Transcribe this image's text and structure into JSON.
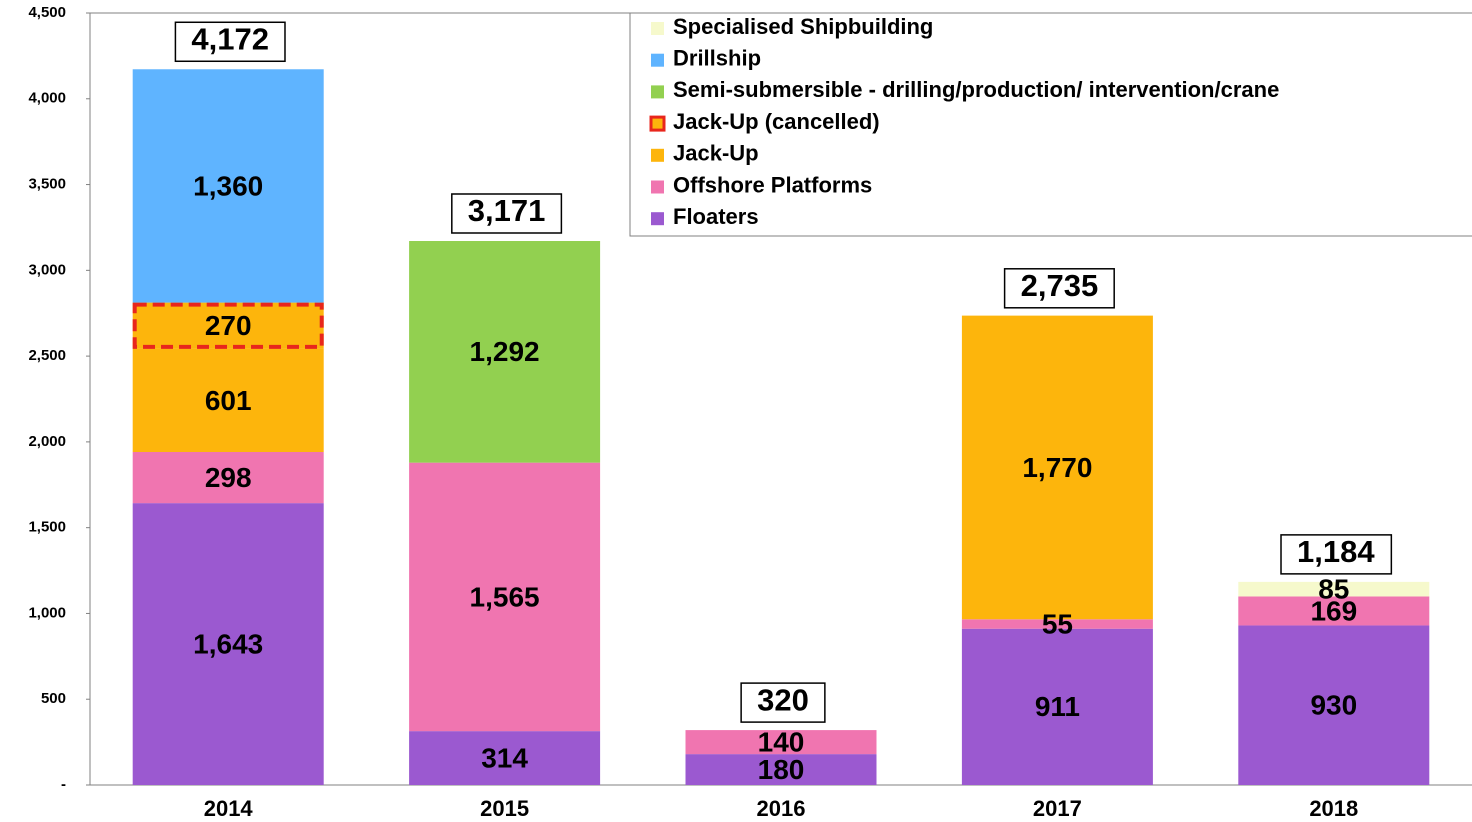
{
  "chart_data": {
    "type": "stacked_bar",
    "categories": [
      "2014",
      "2015",
      "2016",
      "2017",
      "2018"
    ],
    "series": [
      {
        "name": "Floaters",
        "color": "#9b59d0",
        "values": [
          1643,
          314,
          180,
          911,
          930
        ],
        "value_labels": [
          "1,643",
          "314",
          "180",
          "911",
          "930"
        ]
      },
      {
        "name": "Offshore Platforms",
        "color": "#f075b0",
        "values": [
          298,
          1565,
          140,
          55,
          169
        ],
        "value_labels": [
          "298",
          "1,565",
          "140",
          "55",
          "169"
        ]
      },
      {
        "name": "Jack-Up",
        "color": "#fdb50c",
        "values": [
          601,
          null,
          null,
          1770,
          null
        ],
        "value_labels": [
          "601",
          null,
          null,
          "1,770",
          null
        ]
      },
      {
        "name": "Jack-Up (cancelled)",
        "color": "#fdb50c",
        "edge_color": "#e8261c",
        "dashed": true,
        "values": [
          270,
          null,
          null,
          null,
          null
        ],
        "value_labels": [
          "270",
          null,
          null,
          null,
          null
        ]
      },
      {
        "name": "Semi-submersible - drilling/production/ intervention/crane",
        "color": "#92d050",
        "values": [
          null,
          1292,
          null,
          null,
          null
        ],
        "value_labels": [
          null,
          "1,292",
          null,
          null,
          null
        ]
      },
      {
        "name": "Drillship",
        "color": "#5fb4ff",
        "values": [
          1360,
          null,
          null,
          null,
          null
        ],
        "value_labels": [
          "1,360",
          null,
          null,
          null,
          null
        ]
      },
      {
        "name": "Specialised Shipbuilding",
        "color": "#f6f9cc",
        "values": [
          null,
          null,
          null,
          null,
          85
        ],
        "value_labels": [
          null,
          null,
          null,
          null,
          "85"
        ]
      }
    ],
    "totals": [
      4172,
      3171,
      320,
      2735,
      1184
    ],
    "total_labels": [
      "4,172",
      "3,171",
      "320",
      "2,735",
      "1,184"
    ],
    "ylim": [
      0,
      4500
    ],
    "yticks": [
      {
        "value": 0,
        "label": "-"
      },
      500,
      {
        "value": 1000,
        "label": "1,000"
      },
      {
        "value": 1500,
        "label": "1,500"
      },
      {
        "value": 2000,
        "label": "2,000"
      },
      {
        "value": 2500,
        "label": "2,500"
      },
      {
        "value": 3000,
        "label": "3,000"
      },
      {
        "value": 3500,
        "label": "3,500"
      },
      {
        "value": 4000,
        "label": "4,000"
      },
      {
        "value": 4500,
        "label": "4,500"
      }
    ],
    "legend": "top-right"
  }
}
